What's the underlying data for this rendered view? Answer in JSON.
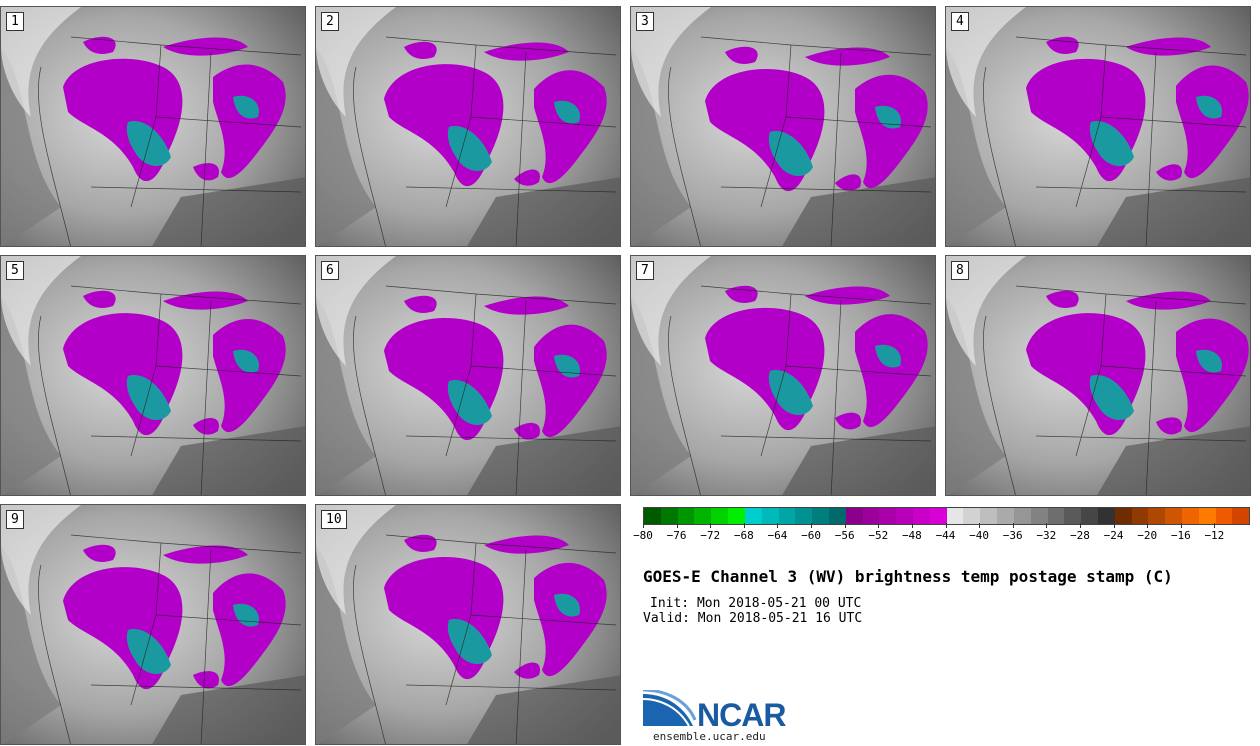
{
  "panels": [
    {
      "label": "1"
    },
    {
      "label": "2"
    },
    {
      "label": "3"
    },
    {
      "label": "4"
    },
    {
      "label": "5"
    },
    {
      "label": "6"
    },
    {
      "label": "7"
    },
    {
      "label": "8"
    },
    {
      "label": "9"
    },
    {
      "label": "10"
    }
  ],
  "colorbar": {
    "colors": [
      "#005a00",
      "#007800",
      "#009600",
      "#00b400",
      "#00d200",
      "#00ef00",
      "#00cdcd",
      "#00b9b9",
      "#00a5a5",
      "#009191",
      "#007d7d",
      "#006969",
      "#8b008b",
      "#9a009a",
      "#a900a9",
      "#b800b8",
      "#c800c8",
      "#d700d7",
      "#e6e6e6",
      "#d2d2d2",
      "#bebebe",
      "#aaaaaa",
      "#969696",
      "#828282",
      "#6e6e6e",
      "#5a5a5a",
      "#464646",
      "#323232",
      "#6e2c00",
      "#8e3a00",
      "#ae4800",
      "#ce5600",
      "#ee6400",
      "#ff7a00",
      "#ee5a00",
      "#d24400"
    ],
    "tick_labels": [
      "−80",
      "−76",
      "−72",
      "−68",
      "−64",
      "−60",
      "−56",
      "−52",
      "−48",
      "−44",
      "−40",
      "−36",
      "−32",
      "−28",
      "−24",
      "−20",
      "−16",
      "−12"
    ]
  },
  "title": "GOES-E Channel 3 (WV) brightness temp postage stamp (C)",
  "init": "Init: Mon 2018-05-21 00 UTC",
  "valid": "Valid: Mon 2018-05-21 16 UTC",
  "logo_text": "NCAR",
  "site": "ensemble.ucar.edu"
}
